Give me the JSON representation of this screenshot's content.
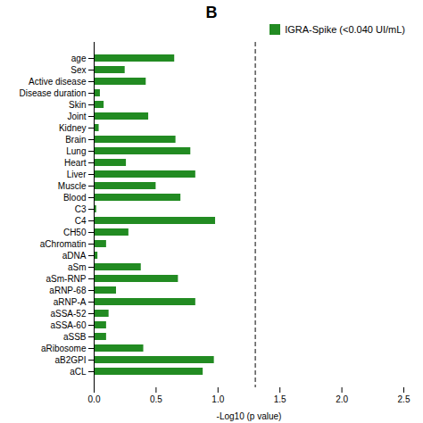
{
  "chart_data": {
    "type": "bar",
    "orientation": "horizontal",
    "title": "B",
    "xlabel": "-Log10 (p value)",
    "categories": [
      "age",
      "Sex",
      "Active disease",
      "Disease duration",
      "Skin",
      "Joint",
      "Kidney",
      "Brain",
      "Lung",
      "Heart",
      "Liver",
      "Muscle",
      "Blood",
      "C3",
      "C4",
      "CH50",
      "aChromatin",
      "aDNA",
      "aSm",
      "aSm-RNP",
      "aRNP-68",
      "aRNP-A",
      "aSSA-52",
      "aSSA-60",
      "aSSB",
      "aRibosome",
      "aB2GPI",
      "aCL"
    ],
    "series": [
      {
        "name": "IGRA-Spike (<0.040 UI/mL)",
        "color": "#228B22",
        "values": [
          0.65,
          0.25,
          0.42,
          0.05,
          0.08,
          0.44,
          0.04,
          0.66,
          0.78,
          0.26,
          0.82,
          0.5,
          0.7,
          0.02,
          0.98,
          0.28,
          0.1,
          0.03,
          0.38,
          0.68,
          0.18,
          0.82,
          0.12,
          0.1,
          0.1,
          0.4,
          0.97,
          0.88
        ]
      }
    ],
    "xlim": [
      0,
      2.5
    ],
    "xticks": [
      {
        "value": 0,
        "label": "0.0"
      },
      0.5,
      {
        "value": 1,
        "label": "1.0"
      },
      1.5,
      {
        "value": 2,
        "label": "2.0"
      },
      2.5
    ],
    "reference_line": 1.301,
    "reference_line_style": "dashed",
    "legend": "upper right",
    "grid": false
  }
}
